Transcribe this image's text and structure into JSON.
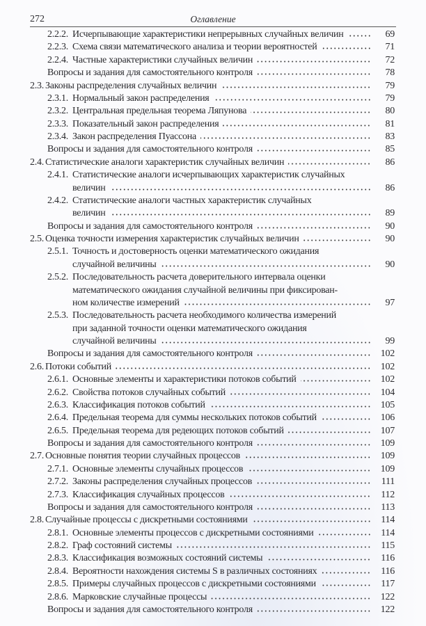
{
  "header": {
    "page_number": "272",
    "title": "Оглавление"
  },
  "entries": [
    {
      "level": 2,
      "number": "2.2.2.",
      "lines": [
        "Исчерпывающие характеристики непрерывных случайных величин"
      ],
      "page": "69"
    },
    {
      "level": 2,
      "number": "2.2.3.",
      "lines": [
        "Схема связи математического анализа и теории вероятностей"
      ],
      "page": "71"
    },
    {
      "level": 2,
      "number": "2.2.4.",
      "lines": [
        "Частные характеристики случайных величин"
      ],
      "page": "72"
    },
    {
      "level": 3,
      "number": "",
      "lines": [
        "Вопросы и задания для самостоятельного контроля"
      ],
      "page": "78"
    },
    {
      "level": 1,
      "number": "2.3.",
      "lines": [
        "Законы распределения случайных величин"
      ],
      "page": "79"
    },
    {
      "level": 2,
      "number": "2.3.1.",
      "lines": [
        "Нормальный закон распределения"
      ],
      "page": "79"
    },
    {
      "level": 2,
      "number": "2.3.2.",
      "lines": [
        "Центральная предельная теорема Ляпунова"
      ],
      "page": "80"
    },
    {
      "level": 2,
      "number": "2.3.3.",
      "lines": [
        "Показательный закон распределения"
      ],
      "page": "81"
    },
    {
      "level": 2,
      "number": "2.3.4.",
      "lines": [
        "Закон распределения Пуассона"
      ],
      "page": "83"
    },
    {
      "level": 3,
      "number": "",
      "lines": [
        "Вопросы и задания для самостоятельного контроля"
      ],
      "page": "85"
    },
    {
      "level": 1,
      "number": "2.4.",
      "lines": [
        "Статистические аналоги характеристик случайных величин"
      ],
      "page": "86"
    },
    {
      "level": 2,
      "number": "2.4.1.",
      "lines": [
        "Статистические аналоги исчерпывающих характеристик случайных",
        "величин"
      ],
      "page": "86"
    },
    {
      "level": 2,
      "number": "2.4.2.",
      "lines": [
        "Статистические аналоги частных характеристик случайных",
        "величин"
      ],
      "page": "89"
    },
    {
      "level": 3,
      "number": "",
      "lines": [
        "Вопросы и задания для самостоятельного контроля"
      ],
      "page": "90"
    },
    {
      "level": 1,
      "number": "2.5.",
      "lines": [
        "Оценка точности измерения характеристик случайных величин"
      ],
      "page": "90"
    },
    {
      "level": 2,
      "number": "2.5.1.",
      "lines": [
        "Точность и достоверность оценки математического ожидания",
        "случайной величины"
      ],
      "page": "90"
    },
    {
      "level": 2,
      "number": "2.5.2.",
      "lines": [
        "Последовательность расчета доверительного интервала оценки",
        "математического ожидания случайной величины при фиксирован-",
        "ном количестве измерений"
      ],
      "page": "97"
    },
    {
      "level": 2,
      "number": "2.5.3.",
      "lines": [
        "Последовательность расчета необходимого количества измерений",
        "при заданной точности оценки математического ожидания",
        "случайной величины"
      ],
      "page": "99"
    },
    {
      "level": 3,
      "number": "",
      "lines": [
        "Вопросы и задания для самостоятельного контроля"
      ],
      "page": "102"
    },
    {
      "level": 1,
      "number": "2.6.",
      "lines": [
        "Потоки событий"
      ],
      "page": "102"
    },
    {
      "level": 2,
      "number": "2.6.1.",
      "lines": [
        "Основные элементы и характеристики потоков событий"
      ],
      "page": "102"
    },
    {
      "level": 2,
      "number": "2.6.2.",
      "lines": [
        "Свойства потоков случайных событий"
      ],
      "page": "104"
    },
    {
      "level": 2,
      "number": "2.6.3.",
      "lines": [
        "Классификация потоков событий"
      ],
      "page": "105"
    },
    {
      "level": 2,
      "number": "2.6.4.",
      "lines": [
        "Предельная теорема для суммы нескольких потоков событий"
      ],
      "page": "106"
    },
    {
      "level": 2,
      "number": "2.6.5.",
      "lines": [
        "Предельная теорема для редеющих потоков событий"
      ],
      "page": "107"
    },
    {
      "level": 3,
      "number": "",
      "lines": [
        "Вопросы и задания для самостоятельного контроля"
      ],
      "page": "109"
    },
    {
      "level": 1,
      "number": "2.7.",
      "lines": [
        "Основные понятия теории случайных процессов"
      ],
      "page": "109"
    },
    {
      "level": 2,
      "number": "2.7.1.",
      "lines": [
        "Основные элементы случайных процессов"
      ],
      "page": "109"
    },
    {
      "level": 2,
      "number": "2.7.2.",
      "lines": [
        "Законы распределения случайных процессов"
      ],
      "page": "111"
    },
    {
      "level": 2,
      "number": "2.7.3.",
      "lines": [
        "Классификация случайных процессов"
      ],
      "page": "112"
    },
    {
      "level": 3,
      "number": "",
      "lines": [
        "Вопросы и задания для самостоятельного контроля"
      ],
      "page": "113"
    },
    {
      "level": 1,
      "number": "2.8.",
      "lines": [
        "Случайные процессы с дискретными состояниями"
      ],
      "page": "114"
    },
    {
      "level": 2,
      "number": "2.8.1.",
      "lines": [
        "Основные элементы процессов с дискретными состояниями"
      ],
      "page": "114"
    },
    {
      "level": 2,
      "number": "2.8.2.",
      "lines": [
        "Граф состояний системы"
      ],
      "page": "115"
    },
    {
      "level": 2,
      "number": "2.8.3.",
      "lines": [
        "Классификация возможных состояний системы"
      ],
      "page": "116"
    },
    {
      "level": 2,
      "number": "2.8.4.",
      "lines": [
        "Вероятности нахождения системы S в различных состояниях"
      ],
      "page": "116"
    },
    {
      "level": 2,
      "number": "2.8.5.",
      "lines": [
        "Примеры случайных процессов с дискретными состояниями"
      ],
      "page": "117"
    },
    {
      "level": 2,
      "number": "2.8.6.",
      "lines": [
        "Марковские случайные процессы"
      ],
      "page": "122"
    },
    {
      "level": 3,
      "number": "",
      "lines": [
        "Вопросы и задания для самостоятельного контроля"
      ],
      "page": "122"
    }
  ]
}
